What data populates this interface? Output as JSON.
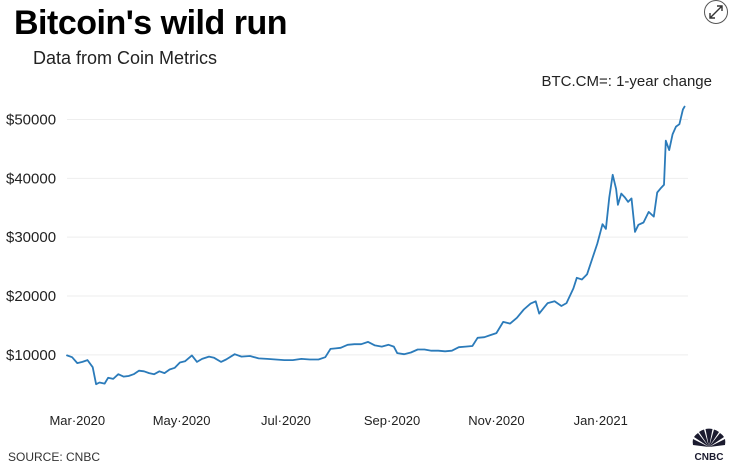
{
  "header": {
    "title": "Bitcoin's wild run",
    "subtitle": "Data from Coin Metrics",
    "series_caption": "BTC.CM=: 1-year change",
    "expand_icon": "expand-arrows-icon"
  },
  "footer": {
    "source": "SOURCE: CNBC",
    "logo_text": "CNBC",
    "logo_icon": "peacock-logo-icon"
  },
  "colors": {
    "line": "#2b7bba",
    "grid": "#eeeeee",
    "tick_text": "#222222",
    "logo_dark": "#1b1b2f"
  },
  "chart_data": {
    "type": "line",
    "title": "Bitcoin's wild run",
    "subtitle": "Data from Coin Metrics",
    "series": [
      {
        "name": "BTC.CM=: 1-year change",
        "points": [
          [
            "2020-02-24",
            9900
          ],
          [
            "2020-02-27",
            9600
          ],
          [
            "2020-03-01",
            8600
          ],
          [
            "2020-03-04",
            8800
          ],
          [
            "2020-03-07",
            9100
          ],
          [
            "2020-03-10",
            7900
          ],
          [
            "2020-03-12",
            5000
          ],
          [
            "2020-03-14",
            5300
          ],
          [
            "2020-03-17",
            5100
          ],
          [
            "2020-03-19",
            6100
          ],
          [
            "2020-03-22",
            5900
          ],
          [
            "2020-03-25",
            6700
          ],
          [
            "2020-03-28",
            6300
          ],
          [
            "2020-03-31",
            6400
          ],
          [
            "2020-04-03",
            6700
          ],
          [
            "2020-04-06",
            7300
          ],
          [
            "2020-04-09",
            7200
          ],
          [
            "2020-04-12",
            6900
          ],
          [
            "2020-04-15",
            6700
          ],
          [
            "2020-04-18",
            7200
          ],
          [
            "2020-04-21",
            6900
          ],
          [
            "2020-04-24",
            7500
          ],
          [
            "2020-04-27",
            7800
          ],
          [
            "2020-04-30",
            8700
          ],
          [
            "2020-05-03",
            8900
          ],
          [
            "2020-05-07",
            9900
          ],
          [
            "2020-05-10",
            8800
          ],
          [
            "2020-05-13",
            9300
          ],
          [
            "2020-05-17",
            9700
          ],
          [
            "2020-05-20",
            9500
          ],
          [
            "2020-05-24",
            8800
          ],
          [
            "2020-05-27",
            9200
          ],
          [
            "2020-06-01",
            10100
          ],
          [
            "2020-06-05",
            9700
          ],
          [
            "2020-06-10",
            9800
          ],
          [
            "2020-06-15",
            9400
          ],
          [
            "2020-06-20",
            9300
          ],
          [
            "2020-06-25",
            9200
          ],
          [
            "2020-06-30",
            9100
          ],
          [
            "2020-07-05",
            9100
          ],
          [
            "2020-07-10",
            9300
          ],
          [
            "2020-07-15",
            9200
          ],
          [
            "2020-07-20",
            9200
          ],
          [
            "2020-07-24",
            9600
          ],
          [
            "2020-07-27",
            11000
          ],
          [
            "2020-07-30",
            11100
          ],
          [
            "2020-08-02",
            11200
          ],
          [
            "2020-08-06",
            11700
          ],
          [
            "2020-08-10",
            11800
          ],
          [
            "2020-08-14",
            11800
          ],
          [
            "2020-08-18",
            12200
          ],
          [
            "2020-08-22",
            11600
          ],
          [
            "2020-08-26",
            11400
          ],
          [
            "2020-08-30",
            11700
          ],
          [
            "2020-09-02",
            11400
          ],
          [
            "2020-09-04",
            10300
          ],
          [
            "2020-09-08",
            10100
          ],
          [
            "2020-09-12",
            10400
          ],
          [
            "2020-09-16",
            10900
          ],
          [
            "2020-09-20",
            10900
          ],
          [
            "2020-09-24",
            10700
          ],
          [
            "2020-09-28",
            10700
          ],
          [
            "2020-10-02",
            10600
          ],
          [
            "2020-10-06",
            10700
          ],
          [
            "2020-10-10",
            11300
          ],
          [
            "2020-10-14",
            11400
          ],
          [
            "2020-10-18",
            11500
          ],
          [
            "2020-10-21",
            12900
          ],
          [
            "2020-10-25",
            13000
          ],
          [
            "2020-10-28",
            13300
          ],
          [
            "2020-11-01",
            13700
          ],
          [
            "2020-11-05",
            15600
          ],
          [
            "2020-11-09",
            15300
          ],
          [
            "2020-11-13",
            16300
          ],
          [
            "2020-11-17",
            17700
          ],
          [
            "2020-11-21",
            18700
          ],
          [
            "2020-11-24",
            19100
          ],
          [
            "2020-11-26",
            17000
          ],
          [
            "2020-11-29",
            18100
          ],
          [
            "2020-12-01",
            18800
          ],
          [
            "2020-12-05",
            19100
          ],
          [
            "2020-12-09",
            18300
          ],
          [
            "2020-12-12",
            18800
          ],
          [
            "2020-12-16",
            21300
          ],
          [
            "2020-12-18",
            23100
          ],
          [
            "2020-12-21",
            22800
          ],
          [
            "2020-12-24",
            23700
          ],
          [
            "2020-12-27",
            26300
          ],
          [
            "2020-12-30",
            28900
          ],
          [
            "2021-01-02",
            32200
          ],
          [
            "2021-01-04",
            31400
          ],
          [
            "2021-01-06",
            36800
          ],
          [
            "2021-01-08",
            40600
          ],
          [
            "2021-01-10",
            38200
          ],
          [
            "2021-01-11",
            35500
          ],
          [
            "2021-01-13",
            37400
          ],
          [
            "2021-01-15",
            36800
          ],
          [
            "2021-01-17",
            36000
          ],
          [
            "2021-01-19",
            36600
          ],
          [
            "2021-01-21",
            30900
          ],
          [
            "2021-01-23",
            32100
          ],
          [
            "2021-01-26",
            32500
          ],
          [
            "2021-01-29",
            34300
          ],
          [
            "2021-02-01",
            33500
          ],
          [
            "2021-02-03",
            37600
          ],
          [
            "2021-02-05",
            38300
          ],
          [
            "2021-02-07",
            38900
          ],
          [
            "2021-02-08",
            46400
          ],
          [
            "2021-02-10",
            44800
          ],
          [
            "2021-02-12",
            47500
          ],
          [
            "2021-02-14",
            48800
          ],
          [
            "2021-02-16",
            49200
          ],
          [
            "2021-02-18",
            51700
          ],
          [
            "2021-02-19",
            52200
          ]
        ]
      }
    ],
    "x_ticks": [
      {
        "date": "2020-03-01",
        "label": "Mar·2020"
      },
      {
        "date": "2020-05-01",
        "label": "May·2020"
      },
      {
        "date": "2020-07-01",
        "label": "Jul·2020"
      },
      {
        "date": "2020-09-01",
        "label": "Sep·2020"
      },
      {
        "date": "2020-11-01",
        "label": "Nov·2020"
      },
      {
        "date": "2021-01-01",
        "label": "Jan·2021"
      }
    ],
    "y_ticks": [
      {
        "value": 10000,
        "label": "$10000"
      },
      {
        "value": 20000,
        "label": "$20000"
      },
      {
        "value": 30000,
        "label": "$30000"
      },
      {
        "value": 40000,
        "label": "$40000"
      },
      {
        "value": 50000,
        "label": "$50000"
      }
    ],
    "ylim": [
      3000,
      54000
    ],
    "xlim": [
      "2020-02-24",
      "2021-02-21"
    ],
    "grid": "horizontal",
    "legend": "none"
  }
}
